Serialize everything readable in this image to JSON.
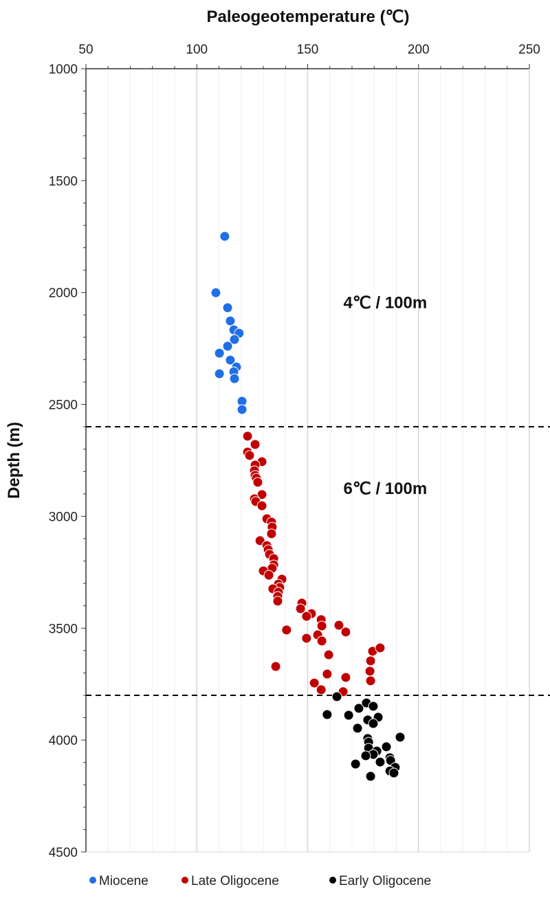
{
  "chart_data": {
    "type": "scatter",
    "title": "",
    "xlabel": "Paleogeotemperature (℃)",
    "ylabel": "Depth (m)",
    "xlim": [
      50,
      250
    ],
    "ylim": [
      1000,
      4500
    ],
    "y_inverted": true,
    "x_axis_position": "top",
    "xticks": [
      50,
      100,
      150,
      200,
      250
    ],
    "yticks": [
      1000,
      1500,
      2000,
      2500,
      3000,
      3500,
      4000,
      4500
    ],
    "grid": "vertical",
    "legend_position": "bottom",
    "reference_lines": [
      {
        "depth": 2600,
        "style": "dashed"
      },
      {
        "depth": 3800,
        "style": "dashed"
      }
    ],
    "annotations": [
      {
        "text": "4℃ / 100m",
        "x": 185,
        "y": 2070
      },
      {
        "text": "6℃ / 100m",
        "x": 185,
        "y": 2900
      }
    ],
    "series": [
      {
        "name": "Miocene",
        "color": "#1f6fe6",
        "points": [
          [
            112.6,
            1749
          ],
          [
            108.6,
            2001
          ],
          [
            113.9,
            2068
          ],
          [
            115.1,
            2127
          ],
          [
            116.7,
            2167
          ],
          [
            119.1,
            2182
          ],
          [
            117.0,
            2210
          ],
          [
            113.9,
            2240
          ],
          [
            110.2,
            2271
          ],
          [
            115.1,
            2302
          ],
          [
            117.9,
            2333
          ],
          [
            116.7,
            2354
          ],
          [
            110.2,
            2363
          ],
          [
            117.0,
            2385
          ],
          [
            120.4,
            2486
          ],
          [
            120.4,
            2523
          ]
        ]
      },
      {
        "name": "Late Oligocene",
        "color": "#c00000",
        "points": [
          [
            122.9,
            2642
          ],
          [
            126.3,
            2679
          ],
          [
            122.9,
            2713
          ],
          [
            123.8,
            2728
          ],
          [
            129.4,
            2756
          ],
          [
            126.3,
            2771
          ],
          [
            126.0,
            2796
          ],
          [
            126.3,
            2817
          ],
          [
            126.9,
            2830
          ],
          [
            127.5,
            2848
          ],
          [
            129.4,
            2903
          ],
          [
            126.0,
            2922
          ],
          [
            126.6,
            2934
          ],
          [
            129.4,
            2953
          ],
          [
            131.6,
            3011
          ],
          [
            133.7,
            3026
          ],
          [
            134.0,
            3048
          ],
          [
            133.7,
            3078
          ],
          [
            128.5,
            3109
          ],
          [
            131.6,
            3131
          ],
          [
            132.2,
            3149
          ],
          [
            132.8,
            3170
          ],
          [
            134.7,
            3189
          ],
          [
            134.7,
            3217
          ],
          [
            134.0,
            3232
          ],
          [
            130.0,
            3244
          ],
          [
            132.5,
            3263
          ],
          [
            138.4,
            3281
          ],
          [
            136.8,
            3303
          ],
          [
            137.4,
            3318
          ],
          [
            134.3,
            3324
          ],
          [
            136.8,
            3339
          ],
          [
            136.5,
            3358
          ],
          [
            136.5,
            3379
          ],
          [
            147.4,
            3388
          ],
          [
            146.8,
            3413
          ],
          [
            151.7,
            3435
          ],
          [
            149.5,
            3447
          ],
          [
            156.1,
            3462
          ],
          [
            156.4,
            3490
          ],
          [
            164.1,
            3487
          ],
          [
            140.5,
            3508
          ],
          [
            167.2,
            3517
          ],
          [
            154.5,
            3530
          ],
          [
            149.5,
            3545
          ],
          [
            156.4,
            3557
          ],
          [
            159.5,
            3619
          ],
          [
            179.3,
            3603
          ],
          [
            182.7,
            3588
          ],
          [
            178.4,
            3646
          ],
          [
            158.8,
            3705
          ],
          [
            178.1,
            3692
          ],
          [
            167.2,
            3720
          ],
          [
            178.4,
            3735
          ],
          [
            153.0,
            3745
          ],
          [
            156.1,
            3775
          ],
          [
            166.0,
            3784
          ],
          [
            135.6,
            3671
          ]
        ]
      },
      {
        "name": "Early Oligocene",
        "color": "#000000",
        "points": [
          [
            163.2,
            3806
          ],
          [
            158.8,
            3886
          ],
          [
            168.5,
            3889
          ],
          [
            173.1,
            3858
          ],
          [
            176.5,
            3834
          ],
          [
            179.6,
            3849
          ],
          [
            177.1,
            3910
          ],
          [
            181.8,
            3898
          ],
          [
            179.6,
            3926
          ],
          [
            172.5,
            3947
          ],
          [
            191.7,
            3987
          ],
          [
            177.1,
            3993
          ],
          [
            177.5,
            4009
          ],
          [
            185.5,
            4030
          ],
          [
            177.5,
            4036
          ],
          [
            181.2,
            4049
          ],
          [
            179.6,
            4064
          ],
          [
            176.2,
            4070
          ],
          [
            187.1,
            4079
          ],
          [
            187.4,
            4091
          ],
          [
            182.7,
            4098
          ],
          [
            171.6,
            4107
          ],
          [
            189.5,
            4122
          ],
          [
            187.1,
            4138
          ],
          [
            188.9,
            4147
          ],
          [
            178.4,
            4162
          ]
        ]
      }
    ]
  }
}
